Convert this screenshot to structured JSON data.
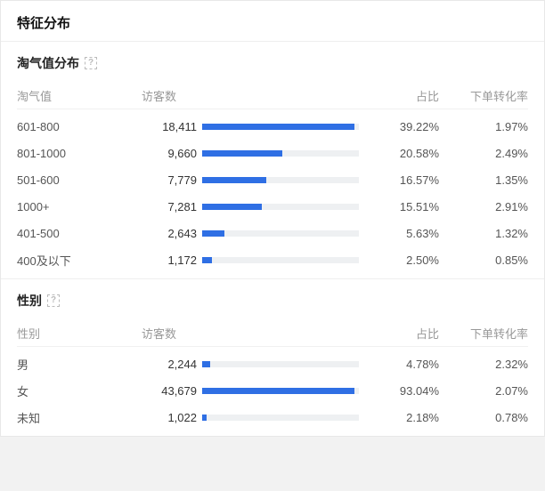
{
  "title": "特征分布",
  "bar_color": "#2f6fe4",
  "track_color": "#eef0f2",
  "sections": [
    {
      "title": "淘气值分布",
      "help": "?",
      "columns": {
        "label": "淘气值",
        "visitors": "访客数",
        "ratio": "占比",
        "conversion": "下单转化率"
      },
      "rows": [
        {
          "label": "601-800",
          "visitors": "18,411",
          "ratio": "39.22%",
          "conversion": "1.97%",
          "bar_pct": 97
        },
        {
          "label": "801-1000",
          "visitors": "9,660",
          "ratio": "20.58%",
          "conversion": "2.49%",
          "bar_pct": 51
        },
        {
          "label": "501-600",
          "visitors": "7,779",
          "ratio": "16.57%",
          "conversion": "1.35%",
          "bar_pct": 41
        },
        {
          "label": "1000+",
          "visitors": "7,281",
          "ratio": "15.51%",
          "conversion": "2.91%",
          "bar_pct": 38
        },
        {
          "label": "401-500",
          "visitors": "2,643",
          "ratio": "5.63%",
          "conversion": "1.32%",
          "bar_pct": 14
        },
        {
          "label": "400及以下",
          "visitors": "1,172",
          "ratio": "2.50%",
          "conversion": "0.85%",
          "bar_pct": 6
        }
      ]
    },
    {
      "title": "性别",
      "help": "?",
      "columns": {
        "label": "性别",
        "visitors": "访客数",
        "ratio": "占比",
        "conversion": "下单转化率"
      },
      "rows": [
        {
          "label": "男",
          "visitors": "2,244",
          "ratio": "4.78%",
          "conversion": "2.32%",
          "bar_pct": 5
        },
        {
          "label": "女",
          "visitors": "43,679",
          "ratio": "93.04%",
          "conversion": "2.07%",
          "bar_pct": 97
        },
        {
          "label": "未知",
          "visitors": "1,022",
          "ratio": "2.18%",
          "conversion": "0.78%",
          "bar_pct": 3
        }
      ]
    }
  ]
}
